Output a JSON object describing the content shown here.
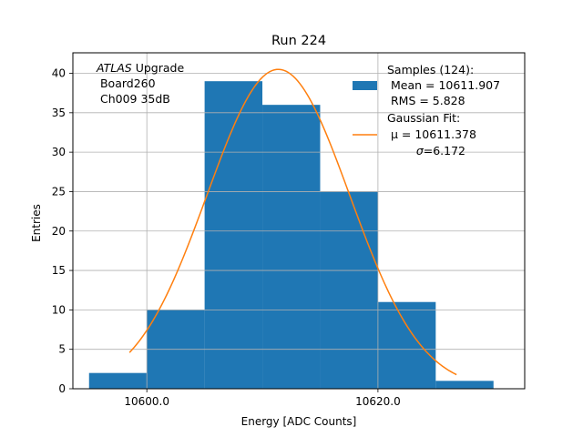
{
  "chart_data": {
    "type": "histogram",
    "title": "Run 224",
    "xlabel": "Energy [ADC Counts]",
    "ylabel": "Entries",
    "xlim": [
      10593.6,
      10632.7
    ],
    "ylim": [
      0,
      42.6
    ],
    "grid": true,
    "xticks": [
      10600,
      10620
    ],
    "xtick_labels": [
      "10600.0",
      "10620.0"
    ],
    "yticks": [
      0,
      5,
      10,
      15,
      20,
      25,
      30,
      35,
      40
    ],
    "ytick_labels": [
      "0",
      "5",
      "10",
      "15",
      "20",
      "25",
      "30",
      "35",
      "40"
    ],
    "bins": [
      {
        "x0": 10595.0,
        "x1": 10600.0,
        "count": 2
      },
      {
        "x0": 10600.0,
        "x1": 10605.0,
        "count": 10
      },
      {
        "x0": 10605.0,
        "x1": 10610.0,
        "count": 39
      },
      {
        "x0": 10610.0,
        "x1": 10615.0,
        "count": 36
      },
      {
        "x0": 10615.0,
        "x1": 10620.0,
        "count": 25
      },
      {
        "x0": 10620.0,
        "x1": 10625.0,
        "count": 11
      },
      {
        "x0": 10625.0,
        "x1": 10630.0,
        "count": 1
      }
    ],
    "fit": {
      "type": "gaussian",
      "amplitude": 40.5,
      "mu": 10611.378,
      "sigma": 6.172,
      "x_range": [
        10598.5,
        10626.8
      ]
    },
    "colors": {
      "hist": "#1f77b4",
      "fit": "#ff7f0e",
      "grid": "#b0b0b0"
    },
    "annotation": {
      "line1_italic": "ATLAS",
      "line1_rest": " Upgrade",
      "line2": " Board260",
      "line3": " Ch009 35dB"
    },
    "legend": {
      "position": "top-right",
      "hist_lines": [
        "Samples (124):",
        " Mean = 10611.907",
        " RMS = 5.828"
      ],
      "fit_line1": "Gaussian Fit:",
      "fit_line2": " μ = 10611.378",
      "fit_line3_sym": "σ",
      "fit_line3_rest": "=6.172"
    }
  }
}
